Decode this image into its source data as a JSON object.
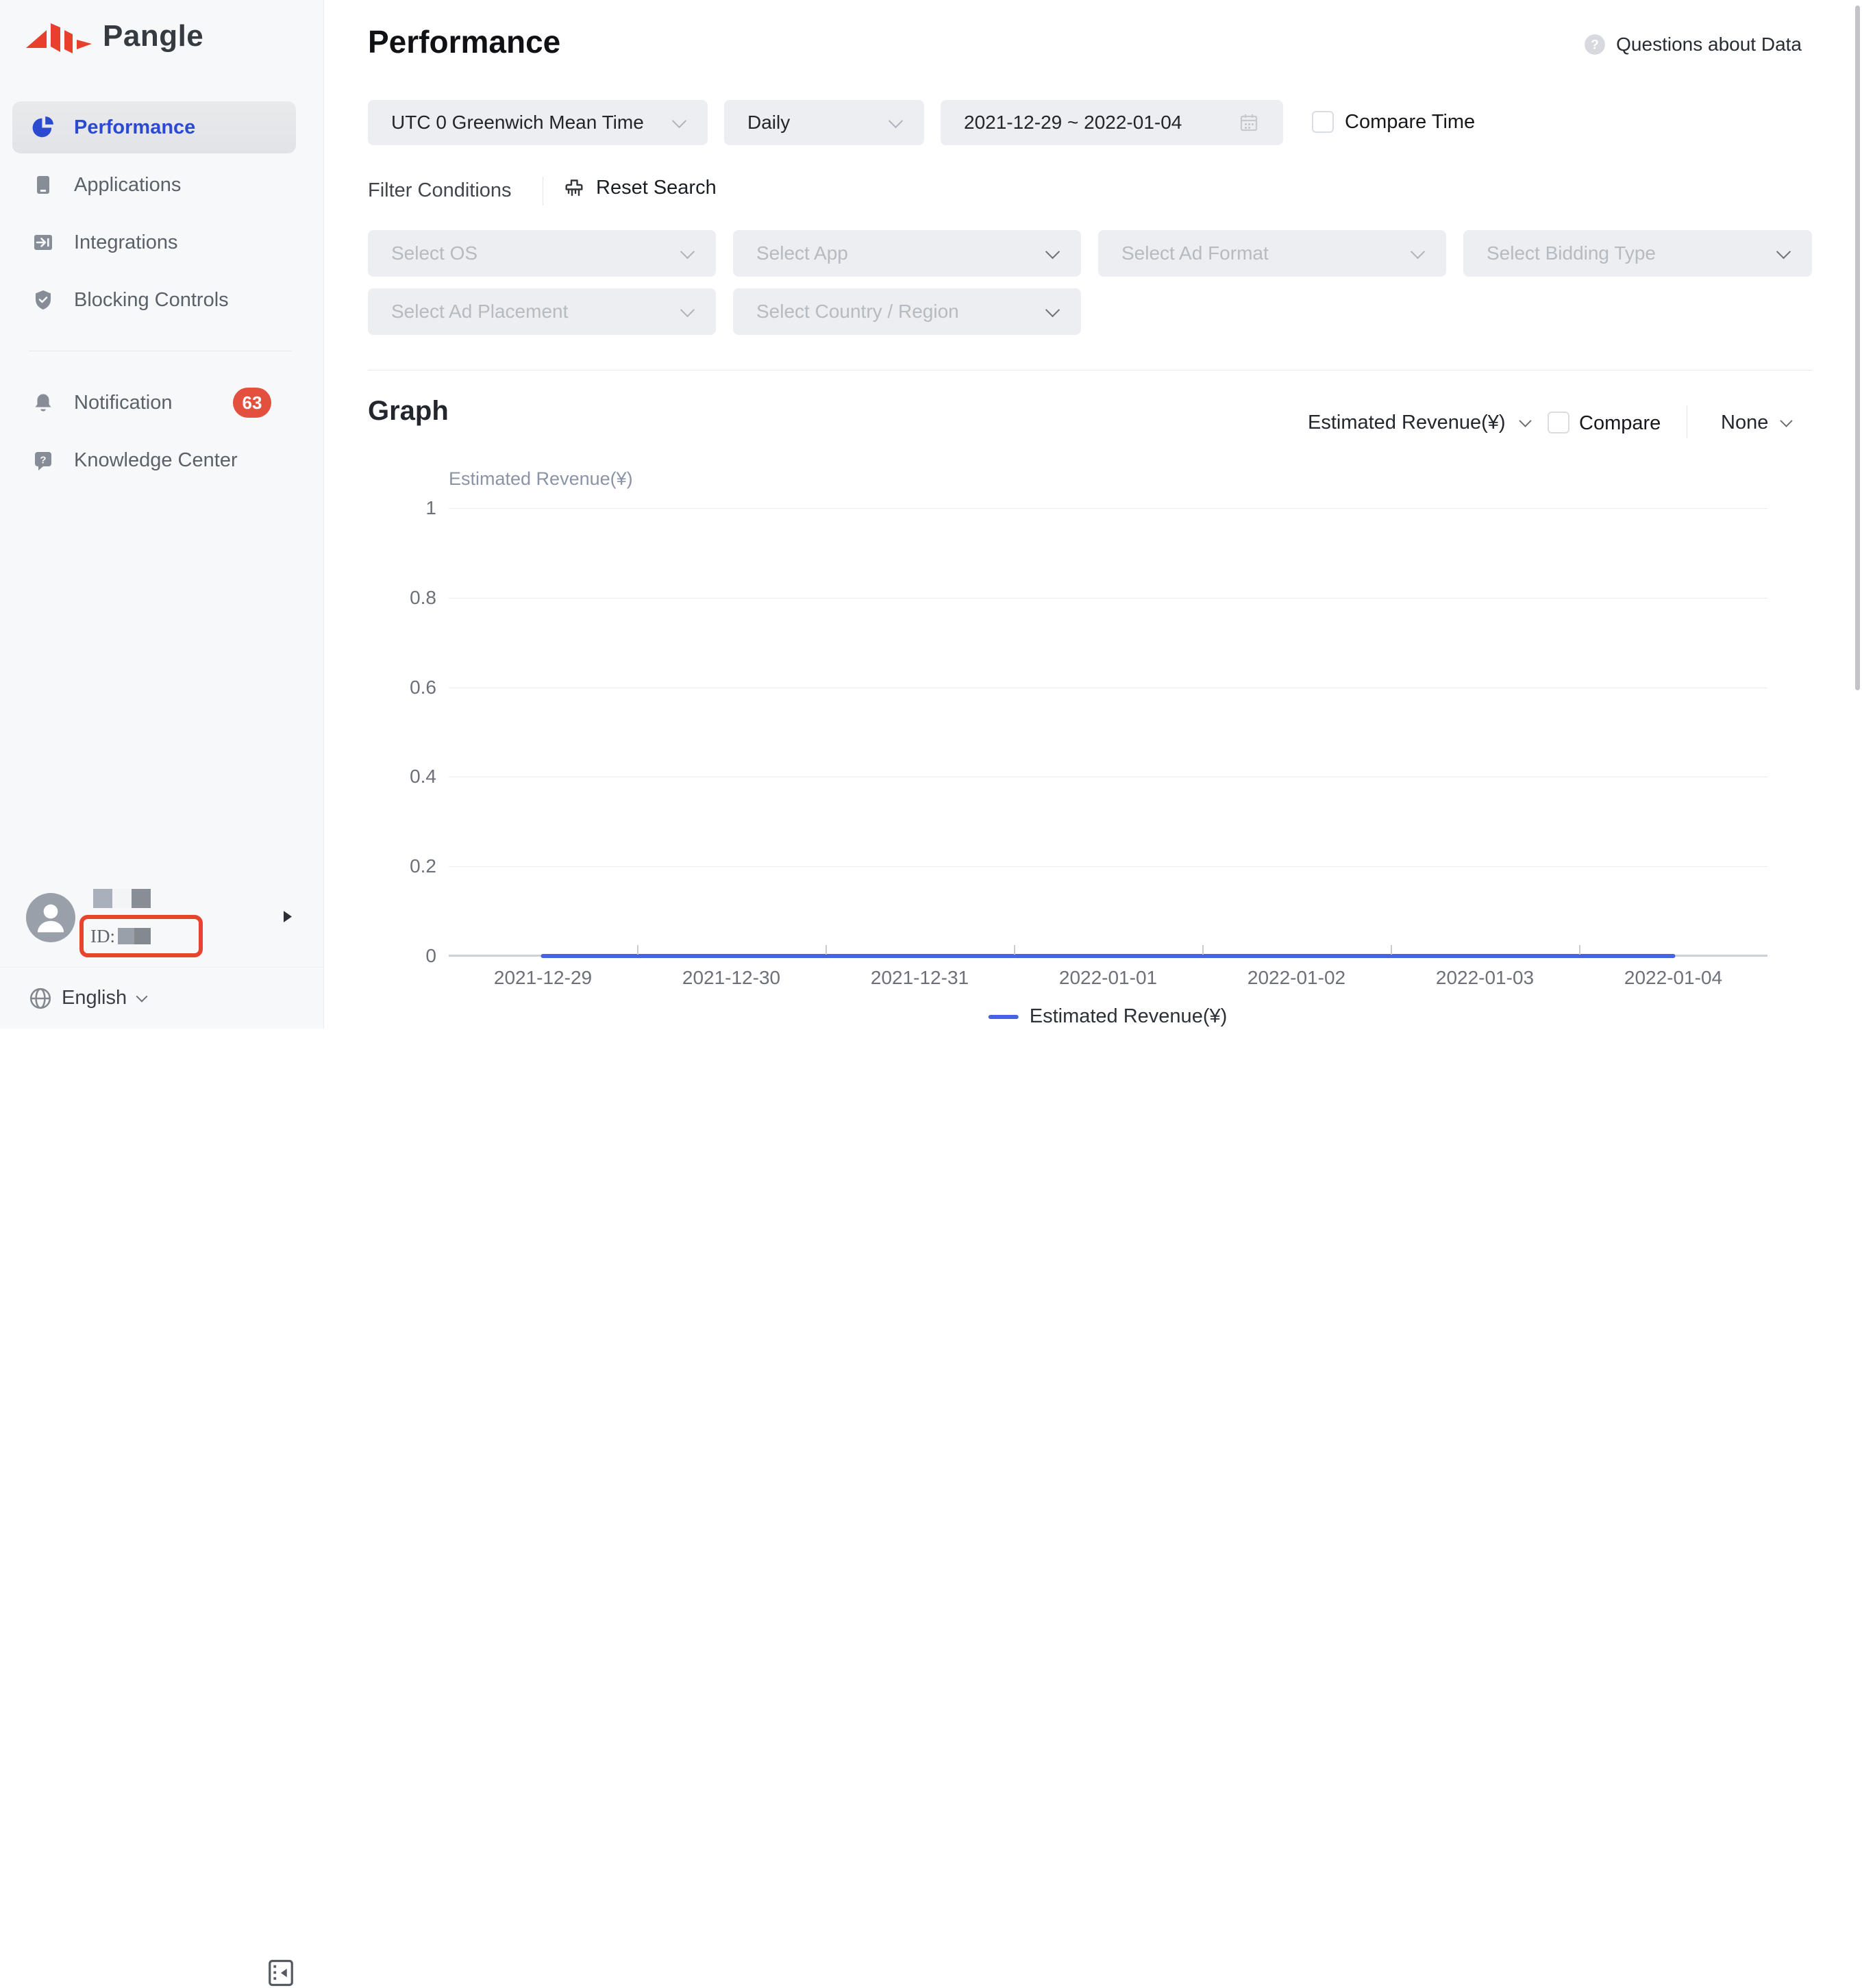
{
  "colors": {
    "brand_red": "#E8402C",
    "accent_blue": "#2B4AD0",
    "line_blue": "#4563E3",
    "badge_red": "#E4503E",
    "annotation_red": "#E8432C"
  },
  "sidebar": {
    "logo_text": "Pangle",
    "nav": [
      {
        "label": "Performance",
        "active": true
      },
      {
        "label": "Applications",
        "active": false
      },
      {
        "label": "Integrations",
        "active": false
      },
      {
        "label": "Blocking Controls",
        "active": false
      }
    ],
    "secondary": [
      {
        "label": "Notification",
        "badge": "63"
      },
      {
        "label": "Knowledge Center",
        "badge": ""
      }
    ],
    "user": {
      "id_label": "ID:"
    },
    "language": {
      "label": "English"
    }
  },
  "header": {
    "title": "Performance",
    "help_label": "Questions about Data"
  },
  "filters": {
    "timezone": "UTC 0 Greenwich Mean Time",
    "granularity": "Daily",
    "date_range": "2021-12-29 ~ 2022-01-04",
    "compare_time_label": "Compare Time",
    "section_label": "Filter Conditions",
    "reset_label": "Reset Search",
    "selects_row1": [
      "Select OS",
      "Select App",
      "Select Ad Format",
      "Select Bidding Type"
    ],
    "selects_row2": [
      "Select Ad Placement",
      "Select Country / Region"
    ]
  },
  "graph": {
    "title": "Graph",
    "metric_selector": "Estimated Revenue(¥)",
    "compare_label": "Compare",
    "dimension_selector": "None"
  },
  "chart_data": {
    "type": "line",
    "title": "Estimated Revenue(¥)",
    "ylabel": "Estimated Revenue(¥)",
    "x": [
      "2021-12-29",
      "2021-12-30",
      "2021-12-31",
      "2022-01-01",
      "2022-01-02",
      "2022-01-03",
      "2022-01-04"
    ],
    "series": [
      {
        "name": "Estimated Revenue(¥)",
        "values": [
          0,
          0,
          0,
          0,
          0,
          0,
          0
        ]
      }
    ],
    "yticks": [
      "0",
      "0.2",
      "0.4",
      "0.6",
      "0.8",
      "1"
    ],
    "ylim": [
      0,
      1
    ],
    "grid": true,
    "legend": [
      "Estimated Revenue(¥)"
    ],
    "legend_position": "bottom",
    "line_color": "#4563E3"
  }
}
